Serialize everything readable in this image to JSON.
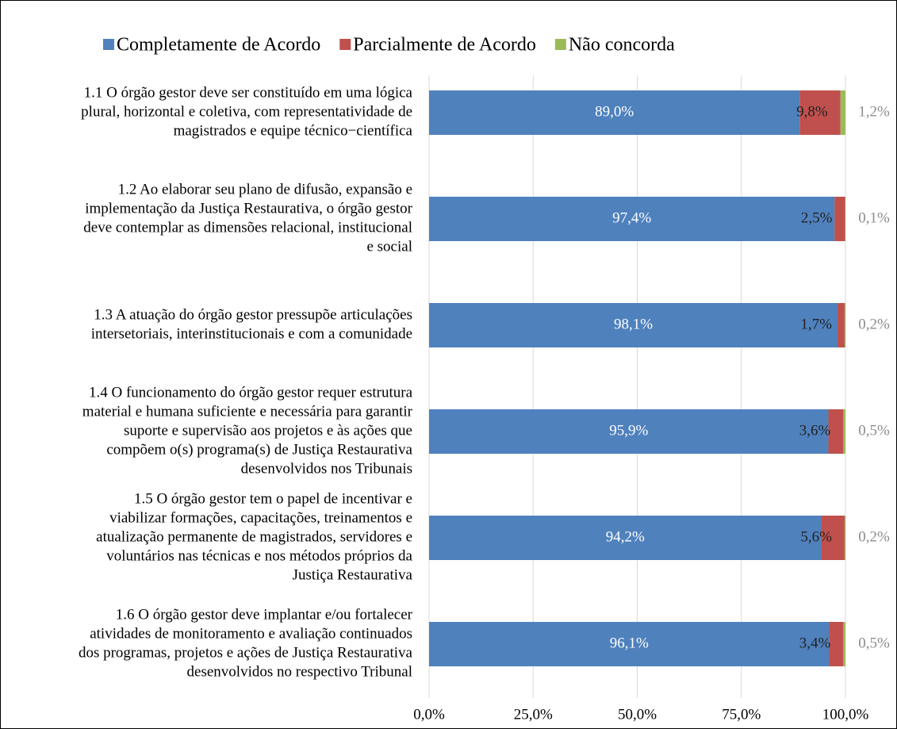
{
  "chart_data": {
    "type": "stacked_barh",
    "categories": [
      [
        "1.1 O órgão gestor deve ser constituído em uma lógica",
        "plural, horizontal e coletiva, com representatividade de",
        "magistrados e equipe técnico−científica"
      ],
      [
        "1.2 Ao elaborar seu plano de difusão, expansão e",
        "implementação da Justiça Restaurativa, o órgão gestor",
        "deve contemplar as dimensões relacional, institucional",
        "e social"
      ],
      [
        "1.3 A atuação do órgão gestor pressupõe articulações",
        "intersetoriais, interinstitucionais e com a comunidade"
      ],
      [
        "1.4 O funcionamento do órgão gestor requer estrutura",
        "material e humana suficiente e necessária para garantir",
        "suporte e supervisão aos projetos e às ações que",
        "compõem o(s) programa(s) de Justiça Restaurativa",
        "desenvolvidos nos Tribunais"
      ],
      [
        "1.5 O órgão gestor tem o papel de incentivar e",
        "viabilizar formações, capacitações, treinamentos e",
        "atualização permanente de magistrados, servidores e",
        "voluntários nas técnicas e nos métodos próprios da",
        "Justiça Restaurativa"
      ],
      [
        "1.6 O órgão gestor deve implantar e/ou fortalecer",
        "atividades de monitoramento e avaliação continuados",
        "dos programas, projetos e ações de Justiça Restaurativa",
        "desenvolvidos no respectivo Tribunal"
      ]
    ],
    "series": [
      {
        "name": "Completamente de Acordo",
        "color": "#4f81bd",
        "values": [
          89.0,
          97.4,
          98.1,
          95.9,
          94.2,
          96.1
        ],
        "value_labels": [
          "89,0%",
          "97,4%",
          "98,1%",
          "95,9%",
          "94,2%",
          "96,1%"
        ]
      },
      {
        "name": "Parcialmente de Acordo",
        "color": "#c0504d",
        "values": [
          9.8,
          2.5,
          1.7,
          3.6,
          5.6,
          3.4
        ],
        "value_labels": [
          "9,8%",
          "2,5%",
          "1,7%",
          "3,6%",
          "5,6%",
          "3,4%"
        ]
      },
      {
        "name": "Não concorda",
        "color": "#9bbb59",
        "values": [
          1.2,
          0.1,
          0.2,
          0.5,
          0.2,
          0.5
        ],
        "value_labels": [
          "1,2%",
          "0,1%",
          "0,2%",
          "0,5%",
          "0,2%",
          "0,5%"
        ]
      }
    ],
    "xlim": [
      0,
      100
    ],
    "xticks": [
      {
        "value": 0,
        "label": "0,0%"
      },
      {
        "value": 25,
        "label": "25,0%"
      },
      {
        "value": 50,
        "label": "50,0%"
      },
      {
        "value": 75,
        "label": "75,0%"
      },
      {
        "value": 100,
        "label": "100,0%"
      }
    ],
    "grid": true,
    "legend": "top"
  }
}
